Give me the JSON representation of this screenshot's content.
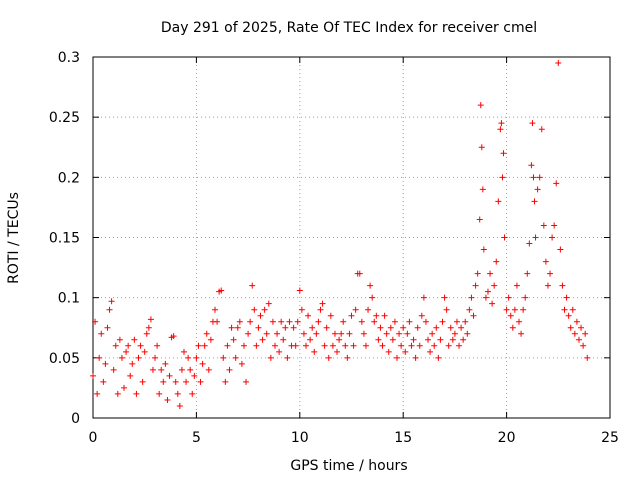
{
  "chart_data": {
    "type": "scatter",
    "title": "Day 291 of 2025, Rate Of TEC Index for receiver cmel",
    "xlabel": "GPS time / hours",
    "ylabel": "ROTI / TECUs",
    "xlim": [
      0,
      25
    ],
    "ylim": [
      0,
      0.3
    ],
    "xticks": [
      0,
      5,
      10,
      15,
      20,
      25
    ],
    "xtick_labels": [
      "0",
      "5",
      "10",
      "15",
      "20",
      "25"
    ],
    "yticks": [
      0,
      0.05,
      0.1,
      0.15,
      0.2,
      0.25,
      0.3
    ],
    "ytick_labels": [
      "0",
      "0.05",
      "0.1",
      "0.15",
      "0.2",
      "0.25",
      "0.3"
    ],
    "grid": true,
    "marker": "+",
    "color": "#ff0000",
    "series": [
      {
        "points": [
          [
            0.0,
            0.035
          ],
          [
            0.1,
            0.08
          ],
          [
            0.2,
            0.02
          ],
          [
            0.3,
            0.05
          ],
          [
            0.4,
            0.07
          ],
          [
            0.5,
            0.03
          ],
          [
            0.6,
            0.045
          ],
          [
            0.7,
            0.075
          ],
          [
            0.8,
            0.09
          ],
          [
            0.9,
            0.097
          ],
          [
            1.0,
            0.04
          ],
          [
            1.1,
            0.06
          ],
          [
            1.2,
            0.02
          ],
          [
            1.3,
            0.065
          ],
          [
            1.4,
            0.05
          ],
          [
            1.5,
            0.025
          ],
          [
            1.6,
            0.055
          ],
          [
            1.7,
            0.06
          ],
          [
            1.8,
            0.035
          ],
          [
            1.9,
            0.045
          ],
          [
            2.0,
            0.065
          ],
          [
            2.1,
            0.02
          ],
          [
            2.2,
            0.05
          ],
          [
            2.3,
            0.06
          ],
          [
            2.4,
            0.03
          ],
          [
            2.5,
            0.055
          ],
          [
            2.6,
            0.07
          ],
          [
            2.7,
            0.075
          ],
          [
            2.8,
            0.082
          ],
          [
            2.9,
            0.04
          ],
          [
            3.0,
            0.05
          ],
          [
            3.1,
            0.06
          ],
          [
            3.2,
            0.02
          ],
          [
            3.3,
            0.04
          ],
          [
            3.4,
            0.03
          ],
          [
            3.5,
            0.045
          ],
          [
            3.6,
            0.015
          ],
          [
            3.7,
            0.035
          ],
          [
            3.8,
            0.067
          ],
          [
            3.9,
            0.068
          ],
          [
            4.0,
            0.03
          ],
          [
            4.1,
            0.02
          ],
          [
            4.2,
            0.01
          ],
          [
            4.3,
            0.04
          ],
          [
            4.4,
            0.055
          ],
          [
            4.5,
            0.03
          ],
          [
            4.6,
            0.05
          ],
          [
            4.7,
            0.04
          ],
          [
            4.8,
            0.02
          ],
          [
            4.9,
            0.035
          ],
          [
            5.0,
            0.05
          ],
          [
            5.1,
            0.06
          ],
          [
            5.2,
            0.03
          ],
          [
            5.3,
            0.045
          ],
          [
            5.4,
            0.06
          ],
          [
            5.5,
            0.07
          ],
          [
            5.6,
            0.04
          ],
          [
            5.7,
            0.065
          ],
          [
            5.8,
            0.08
          ],
          [
            5.9,
            0.09
          ],
          [
            6.0,
            0.08
          ],
          [
            6.1,
            0.105
          ],
          [
            6.2,
            0.106
          ],
          [
            6.3,
            0.05
          ],
          [
            6.4,
            0.03
          ],
          [
            6.5,
            0.06
          ],
          [
            6.6,
            0.04
          ],
          [
            6.7,
            0.075
          ],
          [
            6.8,
            0.065
          ],
          [
            6.9,
            0.05
          ],
          [
            7.0,
            0.075
          ],
          [
            7.1,
            0.08
          ],
          [
            7.2,
            0.045
          ],
          [
            7.3,
            0.06
          ],
          [
            7.4,
            0.03
          ],
          [
            7.5,
            0.07
          ],
          [
            7.6,
            0.08
          ],
          [
            7.7,
            0.11
          ],
          [
            7.8,
            0.09
          ],
          [
            7.9,
            0.06
          ],
          [
            8.0,
            0.075
          ],
          [
            8.1,
            0.085
          ],
          [
            8.2,
            0.065
          ],
          [
            8.3,
            0.09
          ],
          [
            8.4,
            0.07
          ],
          [
            8.5,
            0.095
          ],
          [
            8.6,
            0.05
          ],
          [
            8.7,
            0.08
          ],
          [
            8.8,
            0.06
          ],
          [
            8.9,
            0.07
          ],
          [
            9.0,
            0.055
          ],
          [
            9.1,
            0.08
          ],
          [
            9.2,
            0.065
          ],
          [
            9.3,
            0.075
          ],
          [
            9.4,
            0.05
          ],
          [
            9.5,
            0.08
          ],
          [
            9.6,
            0.06
          ],
          [
            9.7,
            0.075
          ],
          [
            9.8,
            0.06
          ],
          [
            9.9,
            0.08
          ],
          [
            10.0,
            0.106
          ],
          [
            10.1,
            0.09
          ],
          [
            10.2,
            0.07
          ],
          [
            10.3,
            0.06
          ],
          [
            10.4,
            0.085
          ],
          [
            10.5,
            0.065
          ],
          [
            10.6,
            0.075
          ],
          [
            10.7,
            0.055
          ],
          [
            10.8,
            0.07
          ],
          [
            10.9,
            0.08
          ],
          [
            11.0,
            0.09
          ],
          [
            11.1,
            0.095
          ],
          [
            11.2,
            0.06
          ],
          [
            11.3,
            0.075
          ],
          [
            11.4,
            0.05
          ],
          [
            11.5,
            0.085
          ],
          [
            11.6,
            0.06
          ],
          [
            11.7,
            0.07
          ],
          [
            11.8,
            0.055
          ],
          [
            11.9,
            0.065
          ],
          [
            12.0,
            0.07
          ],
          [
            12.1,
            0.08
          ],
          [
            12.2,
            0.06
          ],
          [
            12.3,
            0.05
          ],
          [
            12.4,
            0.07
          ],
          [
            12.5,
            0.085
          ],
          [
            12.6,
            0.06
          ],
          [
            12.7,
            0.09
          ],
          [
            12.8,
            0.12
          ],
          [
            12.9,
            0.12
          ],
          [
            13.0,
            0.08
          ],
          [
            13.1,
            0.07
          ],
          [
            13.2,
            0.06
          ],
          [
            13.3,
            0.09
          ],
          [
            13.4,
            0.11
          ],
          [
            13.5,
            0.1
          ],
          [
            13.6,
            0.08
          ],
          [
            13.7,
            0.085
          ],
          [
            13.8,
            0.065
          ],
          [
            13.9,
            0.075
          ],
          [
            14.0,
            0.06
          ],
          [
            14.1,
            0.085
          ],
          [
            14.2,
            0.07
          ],
          [
            14.3,
            0.055
          ],
          [
            14.4,
            0.075
          ],
          [
            14.5,
            0.065
          ],
          [
            14.6,
            0.08
          ],
          [
            14.7,
            0.05
          ],
          [
            14.8,
            0.07
          ],
          [
            14.9,
            0.06
          ],
          [
            15.0,
            0.075
          ],
          [
            15.1,
            0.055
          ],
          [
            15.2,
            0.07
          ],
          [
            15.3,
            0.08
          ],
          [
            15.4,
            0.06
          ],
          [
            15.5,
            0.065
          ],
          [
            15.6,
            0.05
          ],
          [
            15.7,
            0.075
          ],
          [
            15.8,
            0.06
          ],
          [
            15.9,
            0.085
          ],
          [
            16.0,
            0.1
          ],
          [
            16.1,
            0.08
          ],
          [
            16.2,
            0.065
          ],
          [
            16.3,
            0.055
          ],
          [
            16.4,
            0.07
          ],
          [
            16.5,
            0.06
          ],
          [
            16.6,
            0.075
          ],
          [
            16.7,
            0.05
          ],
          [
            16.8,
            0.065
          ],
          [
            16.9,
            0.08
          ],
          [
            17.0,
            0.1
          ],
          [
            17.1,
            0.09
          ],
          [
            17.2,
            0.06
          ],
          [
            17.3,
            0.075
          ],
          [
            17.4,
            0.065
          ],
          [
            17.5,
            0.07
          ],
          [
            17.6,
            0.08
          ],
          [
            17.7,
            0.06
          ],
          [
            17.8,
            0.075
          ],
          [
            17.9,
            0.065
          ],
          [
            18.0,
            0.08
          ],
          [
            18.1,
            0.07
          ],
          [
            18.2,
            0.09
          ],
          [
            18.3,
            0.1
          ],
          [
            18.4,
            0.085
          ],
          [
            18.5,
            0.11
          ],
          [
            18.6,
            0.12
          ],
          [
            18.7,
            0.165
          ],
          [
            18.75,
            0.26
          ],
          [
            18.8,
            0.225
          ],
          [
            18.85,
            0.19
          ],
          [
            18.9,
            0.14
          ],
          [
            19.0,
            0.1
          ],
          [
            19.1,
            0.105
          ],
          [
            19.2,
            0.12
          ],
          [
            19.3,
            0.095
          ],
          [
            19.4,
            0.11
          ],
          [
            19.5,
            0.13
          ],
          [
            19.6,
            0.18
          ],
          [
            19.7,
            0.24
          ],
          [
            19.75,
            0.245
          ],
          [
            19.8,
            0.2
          ],
          [
            19.85,
            0.22
          ],
          [
            19.9,
            0.15
          ],
          [
            20.0,
            0.09
          ],
          [
            20.1,
            0.1
          ],
          [
            20.2,
            0.085
          ],
          [
            20.3,
            0.075
          ],
          [
            20.4,
            0.09
          ],
          [
            20.5,
            0.11
          ],
          [
            20.6,
            0.08
          ],
          [
            20.7,
            0.07
          ],
          [
            20.8,
            0.09
          ],
          [
            20.9,
            0.1
          ],
          [
            21.0,
            0.12
          ],
          [
            21.1,
            0.145
          ],
          [
            21.2,
            0.21
          ],
          [
            21.25,
            0.245
          ],
          [
            21.3,
            0.2
          ],
          [
            21.35,
            0.18
          ],
          [
            21.4,
            0.15
          ],
          [
            21.5,
            0.19
          ],
          [
            21.6,
            0.2
          ],
          [
            21.7,
            0.24
          ],
          [
            21.8,
            0.16
          ],
          [
            21.9,
            0.13
          ],
          [
            22.0,
            0.11
          ],
          [
            22.1,
            0.12
          ],
          [
            22.2,
            0.15
          ],
          [
            22.3,
            0.16
          ],
          [
            22.4,
            0.195
          ],
          [
            22.5,
            0.295
          ],
          [
            22.6,
            0.14
          ],
          [
            22.7,
            0.11
          ],
          [
            22.8,
            0.09
          ],
          [
            22.9,
            0.1
          ],
          [
            23.0,
            0.085
          ],
          [
            23.1,
            0.075
          ],
          [
            23.2,
            0.09
          ],
          [
            23.3,
            0.07
          ],
          [
            23.4,
            0.08
          ],
          [
            23.5,
            0.065
          ],
          [
            23.6,
            0.075
          ],
          [
            23.7,
            0.06
          ],
          [
            23.8,
            0.07
          ],
          [
            23.9,
            0.05
          ]
        ]
      }
    ]
  }
}
